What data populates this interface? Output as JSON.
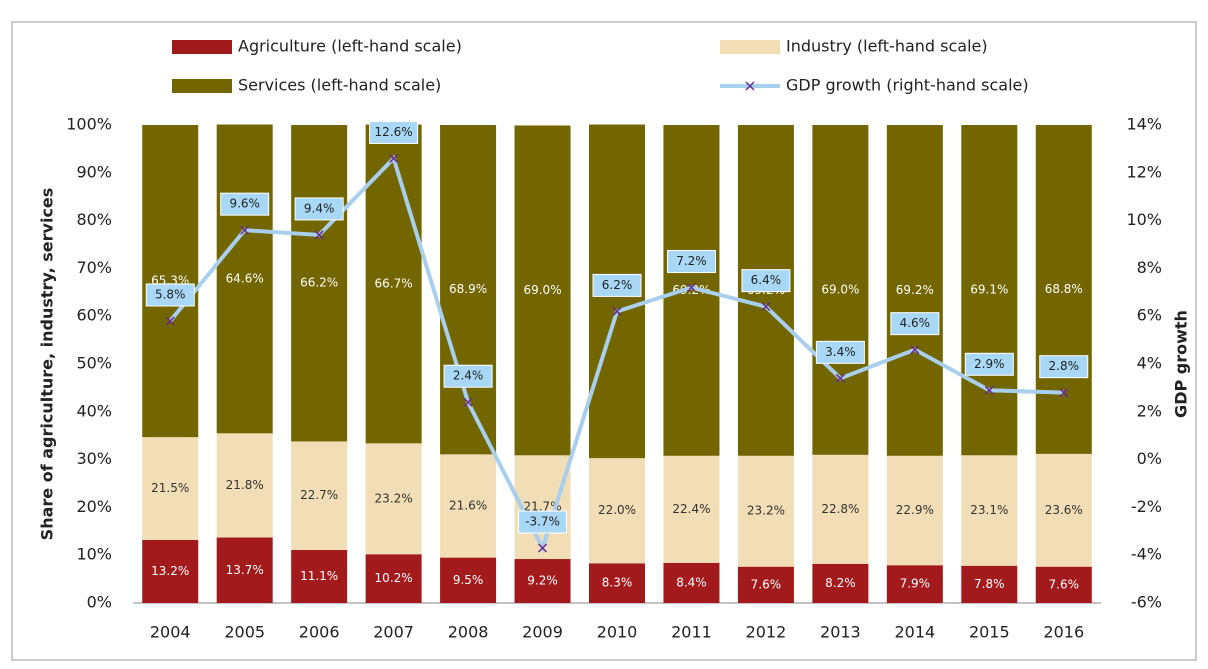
{
  "chart_data": {
    "type": "stacked-bar-line",
    "categories": [
      "2004",
      "2005",
      "2006",
      "2007",
      "2008",
      "2009",
      "2010",
      "2011",
      "2012",
      "2013",
      "2014",
      "2015",
      "2016"
    ],
    "series": [
      {
        "name": "Agriculture (left-hand scale)",
        "color": "#a31a1c",
        "values": [
          13.2,
          13.7,
          11.1,
          10.2,
          9.5,
          9.2,
          8.3,
          8.4,
          7.6,
          8.2,
          7.9,
          7.8,
          7.6
        ],
        "value_labels": [
          "13.2%",
          "13.7%",
          "11.1%",
          "10.2%",
          "9.5%",
          "9.2%",
          "8.3%",
          "8.4%",
          "7.6%",
          "8.2%",
          "7.9%",
          "7.8%",
          "7.6%"
        ]
      },
      {
        "name": "Industry (left-hand scale)",
        "color": "#f2deb6",
        "values": [
          21.5,
          21.8,
          22.7,
          23.2,
          21.6,
          21.7,
          22.0,
          22.4,
          23.2,
          22.8,
          22.9,
          23.1,
          23.6
        ],
        "value_labels": [
          "21.5%",
          "21.8%",
          "22.7%",
          "23.2%",
          "21.6%",
          "21.7%",
          "22.0%",
          "22.4%",
          "23.2%",
          "22.8%",
          "22.9%",
          "23.1%",
          "23.6%"
        ]
      },
      {
        "name": "Services (left-hand scale)",
        "color": "#736600",
        "values": [
          65.3,
          64.6,
          66.2,
          66.7,
          68.9,
          69.0,
          69.8,
          69.2,
          69.2,
          69.0,
          69.2,
          69.1,
          68.8
        ],
        "value_labels": [
          "65.3%",
          "64.6%",
          "66.2%",
          "66.7%",
          "68.9%",
          "69.0%",
          "69.8%",
          "69.2%",
          "69.2%",
          "69.0%",
          "69.2%",
          "69.1%",
          "68.8%"
        ]
      },
      {
        "name": "GDP growth (right-hand scale)",
        "color": "#a8cfee",
        "axis": "y2",
        "values": [
          5.8,
          9.6,
          9.4,
          12.6,
          2.4,
          -3.7,
          6.2,
          7.2,
          6.4,
          3.4,
          4.6,
          2.9,
          2.8
        ],
        "value_labels": [
          "5.8%",
          "9.6%",
          "9.4%",
          "12.6%",
          "2.4%",
          "-3.7%",
          "6.2%",
          "7.2%",
          "6.4%",
          "3.4%",
          "4.6%",
          "2.9%",
          "2.8%"
        ]
      }
    ],
    "ylabel": "Share of agriculture, industry, services",
    "y2label": "GDP growth",
    "ylim": [
      0,
      100
    ],
    "yticks": [
      {
        "value": 0,
        "label": "0%"
      },
      {
        "value": 10,
        "label": "10%"
      },
      {
        "value": 20,
        "label": "20%"
      },
      {
        "value": 30,
        "label": "30%"
      },
      {
        "value": 40,
        "label": "40%"
      },
      {
        "value": 50,
        "label": "50%"
      },
      {
        "value": 60,
        "label": "60%"
      },
      {
        "value": 70,
        "label": "70%"
      },
      {
        "value": 80,
        "label": "80%"
      },
      {
        "value": 90,
        "label": "90%"
      },
      {
        "value": 100,
        "label": "100%"
      }
    ],
    "y2lim": [
      -6,
      14
    ],
    "y2ticks": [
      {
        "value": -6,
        "label": "-6%"
      },
      {
        "value": -4,
        "label": "-4%"
      },
      {
        "value": -2,
        "label": "-2%"
      },
      {
        "value": 0,
        "label": "0%"
      },
      {
        "value": 2,
        "label": "2%"
      },
      {
        "value": 4,
        "label": "4%"
      },
      {
        "value": 6,
        "label": "6%"
      },
      {
        "value": 8,
        "label": "8%"
      },
      {
        "value": 10,
        "label": "10%"
      },
      {
        "value": 12,
        "label": "12%"
      },
      {
        "value": 14,
        "label": "14%"
      }
    ],
    "marker_color": "#6a2c8f",
    "label_box_color": "#a8d8f5"
  }
}
